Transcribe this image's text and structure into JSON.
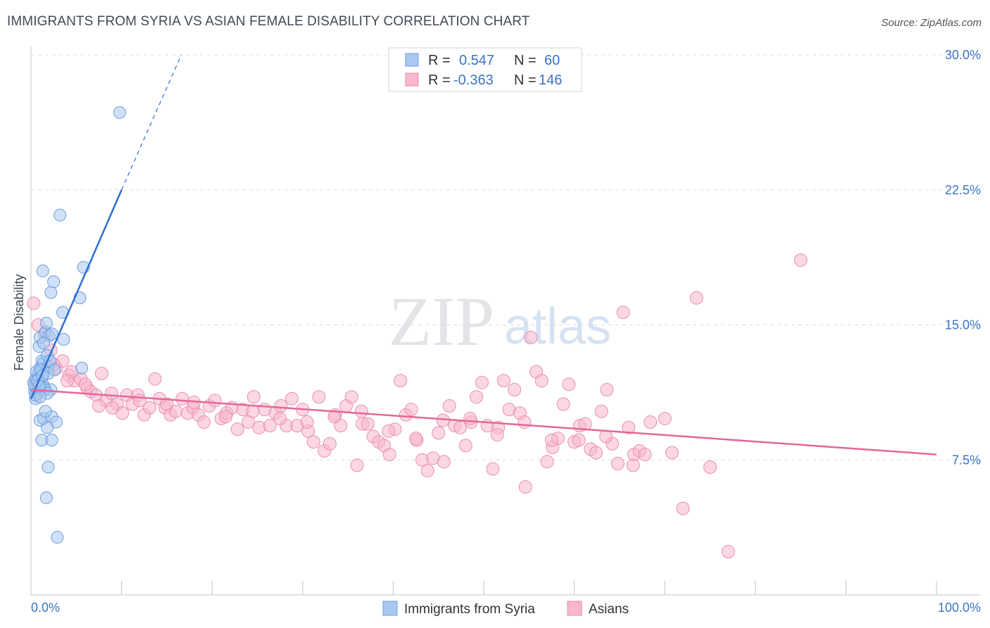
{
  "title": "IMMIGRANTS FROM SYRIA VS ASIAN FEMALE DISABILITY CORRELATION CHART",
  "source": "Source: ZipAtlas.com",
  "watermark": {
    "zip": "ZIP",
    "atlas": "atlas"
  },
  "legend": {
    "rows": [
      {
        "r_label": "R =",
        "r_value": "0.547",
        "n_label": "N =",
        "n_value": "60"
      },
      {
        "r_label": "R =",
        "r_value": "-0.363",
        "n_label": "N =",
        "n_value": "146"
      }
    ]
  },
  "bottom_legend": [
    "Immigrants from Syria",
    "Asians"
  ],
  "colors": {
    "blue_fill": "#a9c8f0",
    "blue_stroke": "#6b9de0",
    "blue_line": "#2d6fd0",
    "pink_fill": "#f7b7cc",
    "pink_stroke": "#ea8eaf",
    "pink_line": "#e4679a",
    "tick_text": "#3a74c6",
    "grid": "#dcdcdc"
  },
  "chart_data": {
    "type": "scatter",
    "title": "IMMIGRANTS FROM SYRIA VS ASIAN FEMALE DISABILITY CORRELATION CHART",
    "xlabel": "",
    "ylabel": "Female Disability",
    "xlim": [
      0,
      100
    ],
    "ylim": [
      0,
      30
    ],
    "x_tick_labels": [
      "0.0%",
      "100.0%"
    ],
    "y_ticks": [
      7.5,
      15.0,
      22.5,
      30.0
    ],
    "y_tick_labels": [
      "7.5%",
      "15.0%",
      "22.5%",
      "30.0%"
    ],
    "grid": true,
    "legend_placement": "top-center",
    "series": [
      {
        "name": "Immigrants from Syria",
        "r": 0.547,
        "n": 60,
        "trend": {
          "x": [
            0,
            10
          ],
          "y": [
            10.9,
            22.5
          ],
          "dashed_to": [
            16.6,
            30.0
          ]
        },
        "points": [
          [
            0.3,
            11.8
          ],
          [
            0.4,
            11.3
          ],
          [
            0.5,
            12.0
          ],
          [
            0.6,
            11.5
          ],
          [
            0.7,
            11.2
          ],
          [
            0.5,
            10.9
          ],
          [
            0.8,
            12.3
          ],
          [
            0.9,
            11.9
          ],
          [
            1.0,
            12.6
          ],
          [
            1.1,
            11.4
          ],
          [
            1.2,
            12.1
          ],
          [
            1.3,
            11.7
          ],
          [
            0.6,
            12.4
          ],
          [
            0.9,
            13.8
          ],
          [
            1.0,
            14.3
          ],
          [
            1.2,
            13.0
          ],
          [
            1.4,
            12.9
          ],
          [
            1.5,
            11.5
          ],
          [
            1.6,
            14.6
          ],
          [
            1.7,
            15.1
          ],
          [
            1.8,
            13.3
          ],
          [
            1.9,
            12.7
          ],
          [
            2.0,
            14.4
          ],
          [
            2.1,
            13.0
          ],
          [
            2.2,
            11.4
          ],
          [
            2.3,
            14.5
          ],
          [
            1.3,
            18.0
          ],
          [
            2.5,
            17.4
          ],
          [
            2.2,
            16.8
          ],
          [
            3.6,
            14.2
          ],
          [
            3.5,
            15.7
          ],
          [
            5.4,
            16.5
          ],
          [
            5.8,
            18.2
          ],
          [
            3.2,
            21.1
          ],
          [
            9.8,
            26.8
          ],
          [
            5.6,
            12.6
          ],
          [
            1.5,
            11.4
          ],
          [
            1.8,
            11.2
          ],
          [
            1.0,
            9.7
          ],
          [
            1.4,
            9.8
          ],
          [
            2.3,
            9.9
          ],
          [
            2.8,
            9.6
          ],
          [
            1.8,
            9.3
          ],
          [
            1.2,
            8.6
          ],
          [
            2.3,
            8.6
          ],
          [
            1.9,
            7.1
          ],
          [
            1.7,
            5.4
          ],
          [
            2.9,
            3.2
          ],
          [
            0.8,
            12.0
          ],
          [
            1.1,
            12.5
          ],
          [
            0.4,
            11.6
          ],
          [
            1.6,
            10.2
          ],
          [
            0.7,
            11.9
          ],
          [
            1.9,
            12.3
          ],
          [
            2.6,
            12.5
          ],
          [
            0.5,
            11.1
          ],
          [
            1.0,
            11.0
          ],
          [
            1.3,
            12.2
          ],
          [
            0.9,
            11.6
          ],
          [
            1.4,
            14.0
          ]
        ]
      },
      {
        "name": "Asians",
        "r": -0.363,
        "n": 146,
        "trend": {
          "x": [
            0,
            100
          ],
          "y": [
            11.4,
            7.8
          ]
        },
        "points": [
          [
            0.3,
            16.2
          ],
          [
            0.8,
            15.0
          ],
          [
            1.5,
            14.5
          ],
          [
            2.2,
            13.6
          ],
          [
            2.8,
            12.6
          ],
          [
            3.5,
            13.0
          ],
          [
            4.2,
            12.2
          ],
          [
            4.8,
            11.9
          ],
          [
            5.5,
            12.0
          ],
          [
            6.2,
            11.5
          ],
          [
            6.6,
            11.3
          ],
          [
            7.2,
            11.1
          ],
          [
            7.8,
            12.3
          ],
          [
            8.3,
            10.8
          ],
          [
            8.9,
            11.2
          ],
          [
            9.5,
            10.6
          ],
          [
            10.1,
            10.1
          ],
          [
            10.6,
            11.1
          ],
          [
            11.2,
            10.6
          ],
          [
            11.8,
            11.1
          ],
          [
            12.5,
            10.0
          ],
          [
            13.1,
            10.4
          ],
          [
            13.7,
            12.0
          ],
          [
            14.2,
            10.9
          ],
          [
            14.8,
            10.4
          ],
          [
            15.4,
            10.0
          ],
          [
            16.0,
            10.2
          ],
          [
            16.7,
            10.9
          ],
          [
            17.3,
            10.1
          ],
          [
            17.9,
            10.4
          ],
          [
            18.5,
            10.0
          ],
          [
            19.1,
            9.6
          ],
          [
            19.7,
            10.5
          ],
          [
            20.3,
            10.8
          ],
          [
            21.0,
            9.8
          ],
          [
            21.6,
            10.1
          ],
          [
            22.2,
            10.4
          ],
          [
            22.8,
            9.2
          ],
          [
            23.4,
            10.3
          ],
          [
            24.0,
            9.6
          ],
          [
            24.6,
            11.0
          ],
          [
            25.2,
            9.3
          ],
          [
            25.8,
            10.3
          ],
          [
            26.4,
            9.4
          ],
          [
            27.0,
            10.1
          ],
          [
            27.6,
            10.5
          ],
          [
            28.2,
            9.4
          ],
          [
            28.8,
            10.9
          ],
          [
            29.4,
            9.4
          ],
          [
            30.0,
            10.3
          ],
          [
            30.6,
            9.1
          ],
          [
            31.2,
            8.5
          ],
          [
            31.8,
            11.0
          ],
          [
            32.4,
            8.0
          ],
          [
            33.0,
            8.4
          ],
          [
            33.6,
            10.0
          ],
          [
            34.2,
            9.4
          ],
          [
            34.8,
            10.5
          ],
          [
            35.4,
            11.0
          ],
          [
            36.0,
            7.2
          ],
          [
            36.6,
            9.5
          ],
          [
            37.2,
            9.5
          ],
          [
            37.8,
            8.8
          ],
          [
            38.4,
            8.5
          ],
          [
            39.0,
            8.3
          ],
          [
            39.6,
            7.8
          ],
          [
            40.2,
            9.2
          ],
          [
            40.8,
            11.9
          ],
          [
            41.4,
            10.0
          ],
          [
            42.0,
            10.3
          ],
          [
            42.6,
            8.6
          ],
          [
            43.2,
            7.5
          ],
          [
            43.8,
            6.9
          ],
          [
            44.4,
            7.6
          ],
          [
            45.0,
            9.0
          ],
          [
            45.6,
            7.4
          ],
          [
            46.2,
            10.5
          ],
          [
            46.8,
            9.4
          ],
          [
            47.4,
            9.3
          ],
          [
            48.0,
            8.3
          ],
          [
            48.6,
            9.6
          ],
          [
            49.2,
            11.0
          ],
          [
            49.8,
            11.8
          ],
          [
            50.4,
            9.4
          ],
          [
            51.0,
            7.0
          ],
          [
            51.6,
            9.3
          ],
          [
            52.2,
            11.9
          ],
          [
            52.8,
            10.3
          ],
          [
            53.4,
            11.4
          ],
          [
            54.0,
            10.1
          ],
          [
            54.6,
            6.0
          ],
          [
            55.2,
            14.3
          ],
          [
            55.8,
            12.4
          ],
          [
            56.4,
            11.9
          ],
          [
            57.0,
            7.4
          ],
          [
            57.6,
            8.2
          ],
          [
            58.2,
            8.7
          ],
          [
            58.8,
            10.6
          ],
          [
            59.4,
            11.7
          ],
          [
            60.0,
            8.5
          ],
          [
            60.6,
            9.4
          ],
          [
            61.2,
            9.5
          ],
          [
            61.8,
            8.1
          ],
          [
            62.4,
            7.9
          ],
          [
            63.0,
            10.2
          ],
          [
            63.6,
            11.4
          ],
          [
            64.2,
            8.4
          ],
          [
            64.8,
            7.3
          ],
          [
            65.4,
            15.7
          ],
          [
            66.0,
            9.3
          ],
          [
            66.6,
            7.8
          ],
          [
            67.2,
            8.0
          ],
          [
            67.8,
            7.8
          ],
          [
            68.4,
            9.6
          ],
          [
            70.0,
            9.8
          ],
          [
            70.8,
            7.9
          ],
          [
            72.0,
            4.8
          ],
          [
            73.5,
            16.5
          ],
          [
            75.0,
            7.1
          ],
          [
            77.0,
            2.4
          ],
          [
            85.0,
            18.6
          ],
          [
            4.5,
            12.4
          ],
          [
            6.0,
            11.7
          ],
          [
            7.5,
            10.5
          ],
          [
            9.0,
            10.4
          ],
          [
            12.0,
            10.8
          ],
          [
            15.0,
            10.6
          ],
          [
            18.0,
            10.7
          ],
          [
            21.5,
            9.9
          ],
          [
            24.5,
            10.2
          ],
          [
            27.5,
            9.8
          ],
          [
            30.5,
            9.6
          ],
          [
            33.5,
            9.9
          ],
          [
            36.5,
            10.2
          ],
          [
            39.5,
            9.1
          ],
          [
            42.5,
            8.7
          ],
          [
            45.5,
            9.7
          ],
          [
            48.5,
            9.8
          ],
          [
            51.5,
            8.9
          ],
          [
            54.5,
            9.6
          ],
          [
            57.5,
            8.6
          ],
          [
            60.5,
            8.6
          ],
          [
            63.5,
            8.8
          ],
          [
            66.5,
            7.2
          ],
          [
            4.0,
            11.9
          ],
          [
            2.5,
            12.8
          ]
        ]
      }
    ]
  }
}
